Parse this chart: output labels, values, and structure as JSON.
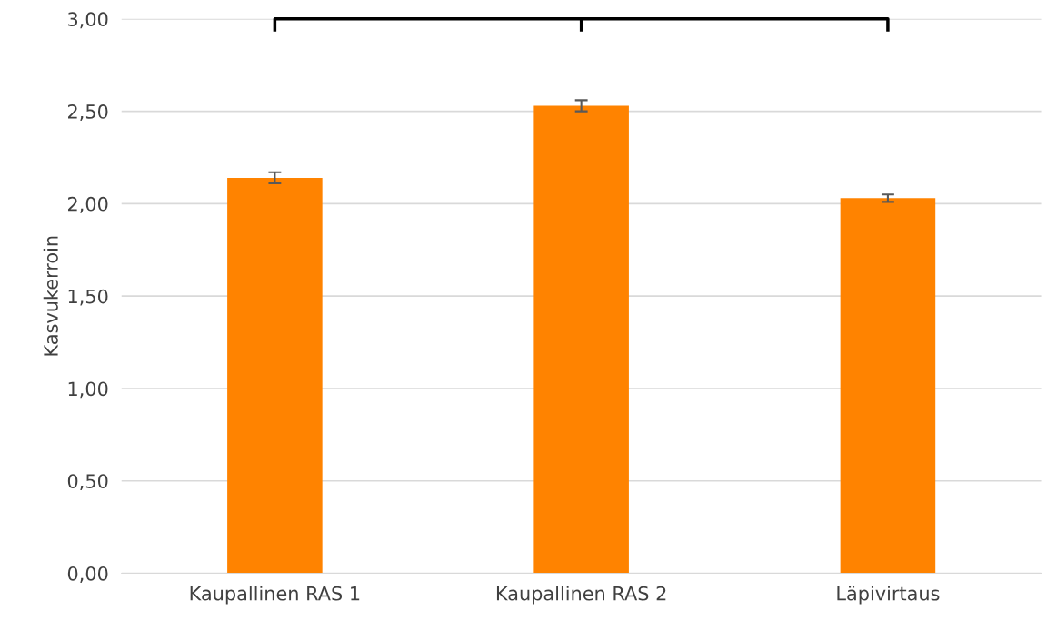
{
  "chart_data": {
    "type": "bar",
    "ylabel": "Kasvukerroin",
    "categories": [
      "Kaupallinen RAS 1",
      "Kaupallinen RAS 2",
      "Läpivirtaus"
    ],
    "values": [
      2.14,
      2.53,
      2.03
    ],
    "errors": [
      0.03,
      0.03,
      0.02
    ],
    "color": "#ff8300",
    "ylim": [
      0,
      3
    ],
    "yticks": [
      {
        "value": 0,
        "label": "0,00"
      },
      {
        "value": 0.5,
        "label": "0,50"
      },
      {
        "value": 1,
        "label": "1,00"
      },
      {
        "value": 1.5,
        "label": "1,50"
      },
      {
        "value": 2,
        "label": "2,00"
      },
      {
        "value": 2.5,
        "label": "2,50"
      },
      {
        "value": 3,
        "label": "3,00"
      }
    ],
    "grid": "y",
    "legend": false
  }
}
